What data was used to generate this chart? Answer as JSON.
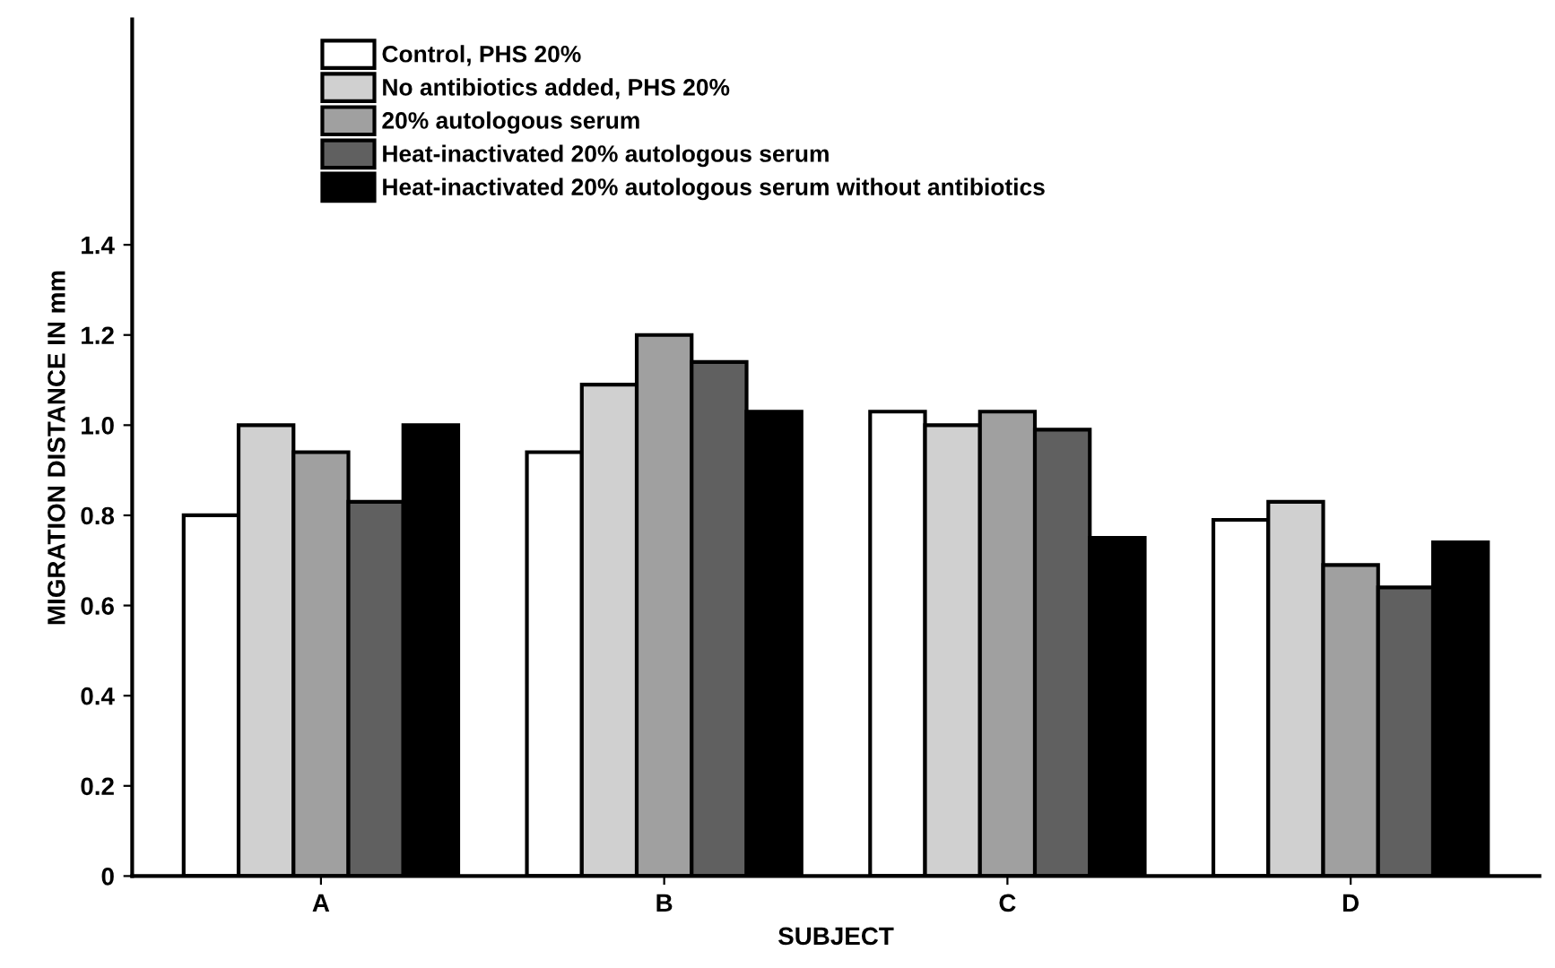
{
  "chart_data": {
    "type": "bar",
    "xlabel": "SUBJECT",
    "ylabel": "MIGRATION DISTANCE IN mm",
    "categories": [
      "A",
      "B",
      "C",
      "D"
    ],
    "series": [
      {
        "name": "Control, PHS 20%",
        "color": "#ffffff",
        "values": [
          0.8,
          0.94,
          1.03,
          0.79
        ]
      },
      {
        "name": "No antibiotics added, PHS 20%",
        "color": "#d0d0d0",
        "values": [
          1.0,
          1.09,
          1.0,
          0.83
        ]
      },
      {
        "name": "20% autologous serum",
        "color": "#a0a0a0",
        "values": [
          0.94,
          1.2,
          1.03,
          0.69
        ]
      },
      {
        "name": "Heat-inactivated 20% autologous serum",
        "color": "#606060",
        "values": [
          0.83,
          1.14,
          0.99,
          0.64
        ]
      },
      {
        "name": "Heat-inactivated 20% autologous serum without antibiotics",
        "color": "#000000",
        "values": [
          1.0,
          1.03,
          0.75,
          0.74
        ]
      }
    ],
    "ylim": [
      0,
      1.9
    ],
    "yticks": [
      0,
      0.2,
      0.4,
      0.6,
      0.8,
      {
        "value": 1.0,
        "label": "1.0"
      },
      1.2,
      1.4
    ],
    "grid": false,
    "legend": "top left"
  }
}
